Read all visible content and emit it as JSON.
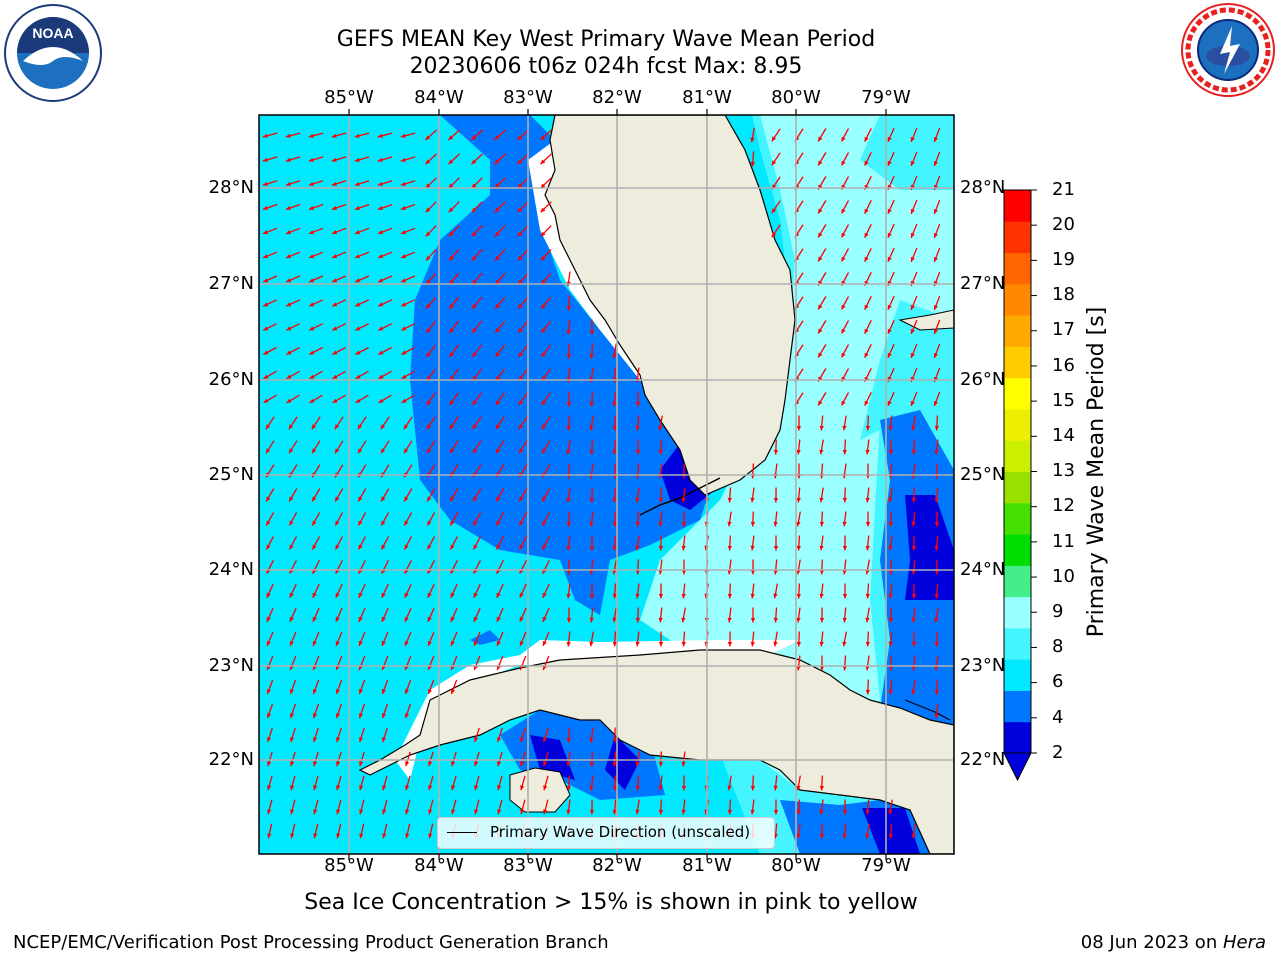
{
  "title": {
    "line1": "GEFS MEAN Key West Primary Wave Mean Period",
    "line2": "20230606 t06z 024h fcst   Max: 8.95"
  },
  "map": {
    "lon_ticks": [
      "85°W",
      "84°W",
      "83°W",
      "82°W",
      "81°W",
      "80°W",
      "79°W"
    ],
    "lat_ticks": [
      "28°N",
      "27°N",
      "26°N",
      "25°N",
      "24°N",
      "23°N",
      "22°N"
    ],
    "land_color": "#eeecdc",
    "arrow_color": "#ff0000",
    "grid_color": "#b0b0b0",
    "legend_label": "Primary Wave Direction (unscaled)"
  },
  "colorbar": {
    "label": "Primary Wave Mean Period [s]",
    "ticks": [
      "21",
      "20",
      "19",
      "18",
      "17",
      "16",
      "15",
      "14",
      "13",
      "12",
      "11",
      "10",
      "9",
      "8",
      "6",
      "4",
      "2"
    ],
    "colors_bottom_to_top": [
      "#0000dd",
      "#0077ff",
      "#00e9ff",
      "#44f5ff",
      "#99ffff",
      "#44ee88",
      "#00dd00",
      "#44e000",
      "#99e000",
      "#ccee00",
      "#eeee00",
      "#ffff00",
      "#ffcc00",
      "#ffaa00",
      "#ff8800",
      "#ff6600",
      "#ff3300",
      "#ff0000"
    ],
    "extend_color": "#0000dd"
  },
  "note": "Sea Ice Concentration > 15% is shown in pink to yellow",
  "footer": {
    "left": "NCEP/EMC/Verification Post Processing Product Generation Branch",
    "right_date": "08 Jun 2023 on ",
    "right_host": "Hera"
  },
  "logos": {
    "noaa": "NOAA",
    "nws": "NATIONAL WEATHER SERVICE"
  }
}
